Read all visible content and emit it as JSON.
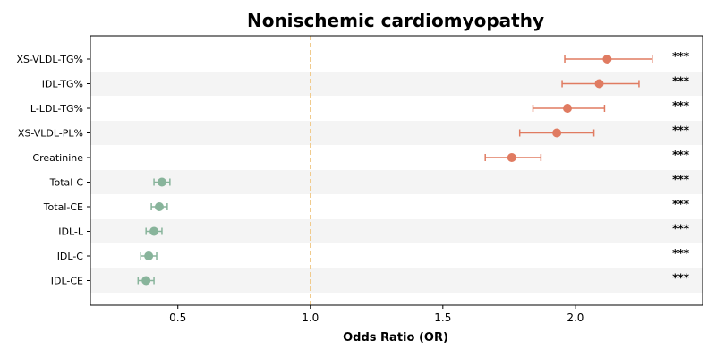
{
  "chart_data": {
    "type": "forest",
    "title": "Nonischemic cardiomyopathy",
    "xlabel": "Odds Ratio (OR)",
    "ylabel": "",
    "xlim": [
      0.17,
      2.48
    ],
    "xticks": [
      0.5,
      1.0,
      1.5,
      2.0
    ],
    "xtick_labels": [
      "0.5",
      "1.0",
      "1.5",
      "2.0"
    ],
    "reference_line": 1.0,
    "grid": false,
    "colors": {
      "increased": "#e07b61",
      "decreased": "#88b49b",
      "reference": "#f0c98a",
      "band": "#f4f4f4"
    },
    "rows": [
      {
        "label": "XS-VLDL-TG%",
        "or": 2.12,
        "ci_low": 1.96,
        "ci_high": 2.29,
        "sig": "***",
        "group": "increased"
      },
      {
        "label": "IDL-TG%",
        "or": 2.09,
        "ci_low": 1.95,
        "ci_high": 2.24,
        "sig": "***",
        "group": "increased"
      },
      {
        "label": "L-LDL-TG%",
        "or": 1.97,
        "ci_low": 1.84,
        "ci_high": 2.11,
        "sig": "***",
        "group": "increased"
      },
      {
        "label": "XS-VLDL-PL%",
        "or": 1.93,
        "ci_low": 1.79,
        "ci_high": 2.07,
        "sig": "***",
        "group": "increased"
      },
      {
        "label": "Creatinine",
        "or": 1.76,
        "ci_low": 1.66,
        "ci_high": 1.87,
        "sig": "***",
        "group": "increased"
      },
      {
        "label": "Total-C",
        "or": 0.44,
        "ci_low": 0.41,
        "ci_high": 0.47,
        "sig": "***",
        "group": "decreased"
      },
      {
        "label": "Total-CE",
        "or": 0.43,
        "ci_low": 0.4,
        "ci_high": 0.46,
        "sig": "***",
        "group": "decreased"
      },
      {
        "label": "IDL-L",
        "or": 0.41,
        "ci_low": 0.38,
        "ci_high": 0.44,
        "sig": "***",
        "group": "decreased"
      },
      {
        "label": "IDL-C",
        "or": 0.39,
        "ci_low": 0.36,
        "ci_high": 0.42,
        "sig": "***",
        "group": "decreased"
      },
      {
        "label": "IDL-CE",
        "or": 0.38,
        "ci_low": 0.35,
        "ci_high": 0.41,
        "sig": "***",
        "group": "decreased"
      }
    ]
  }
}
